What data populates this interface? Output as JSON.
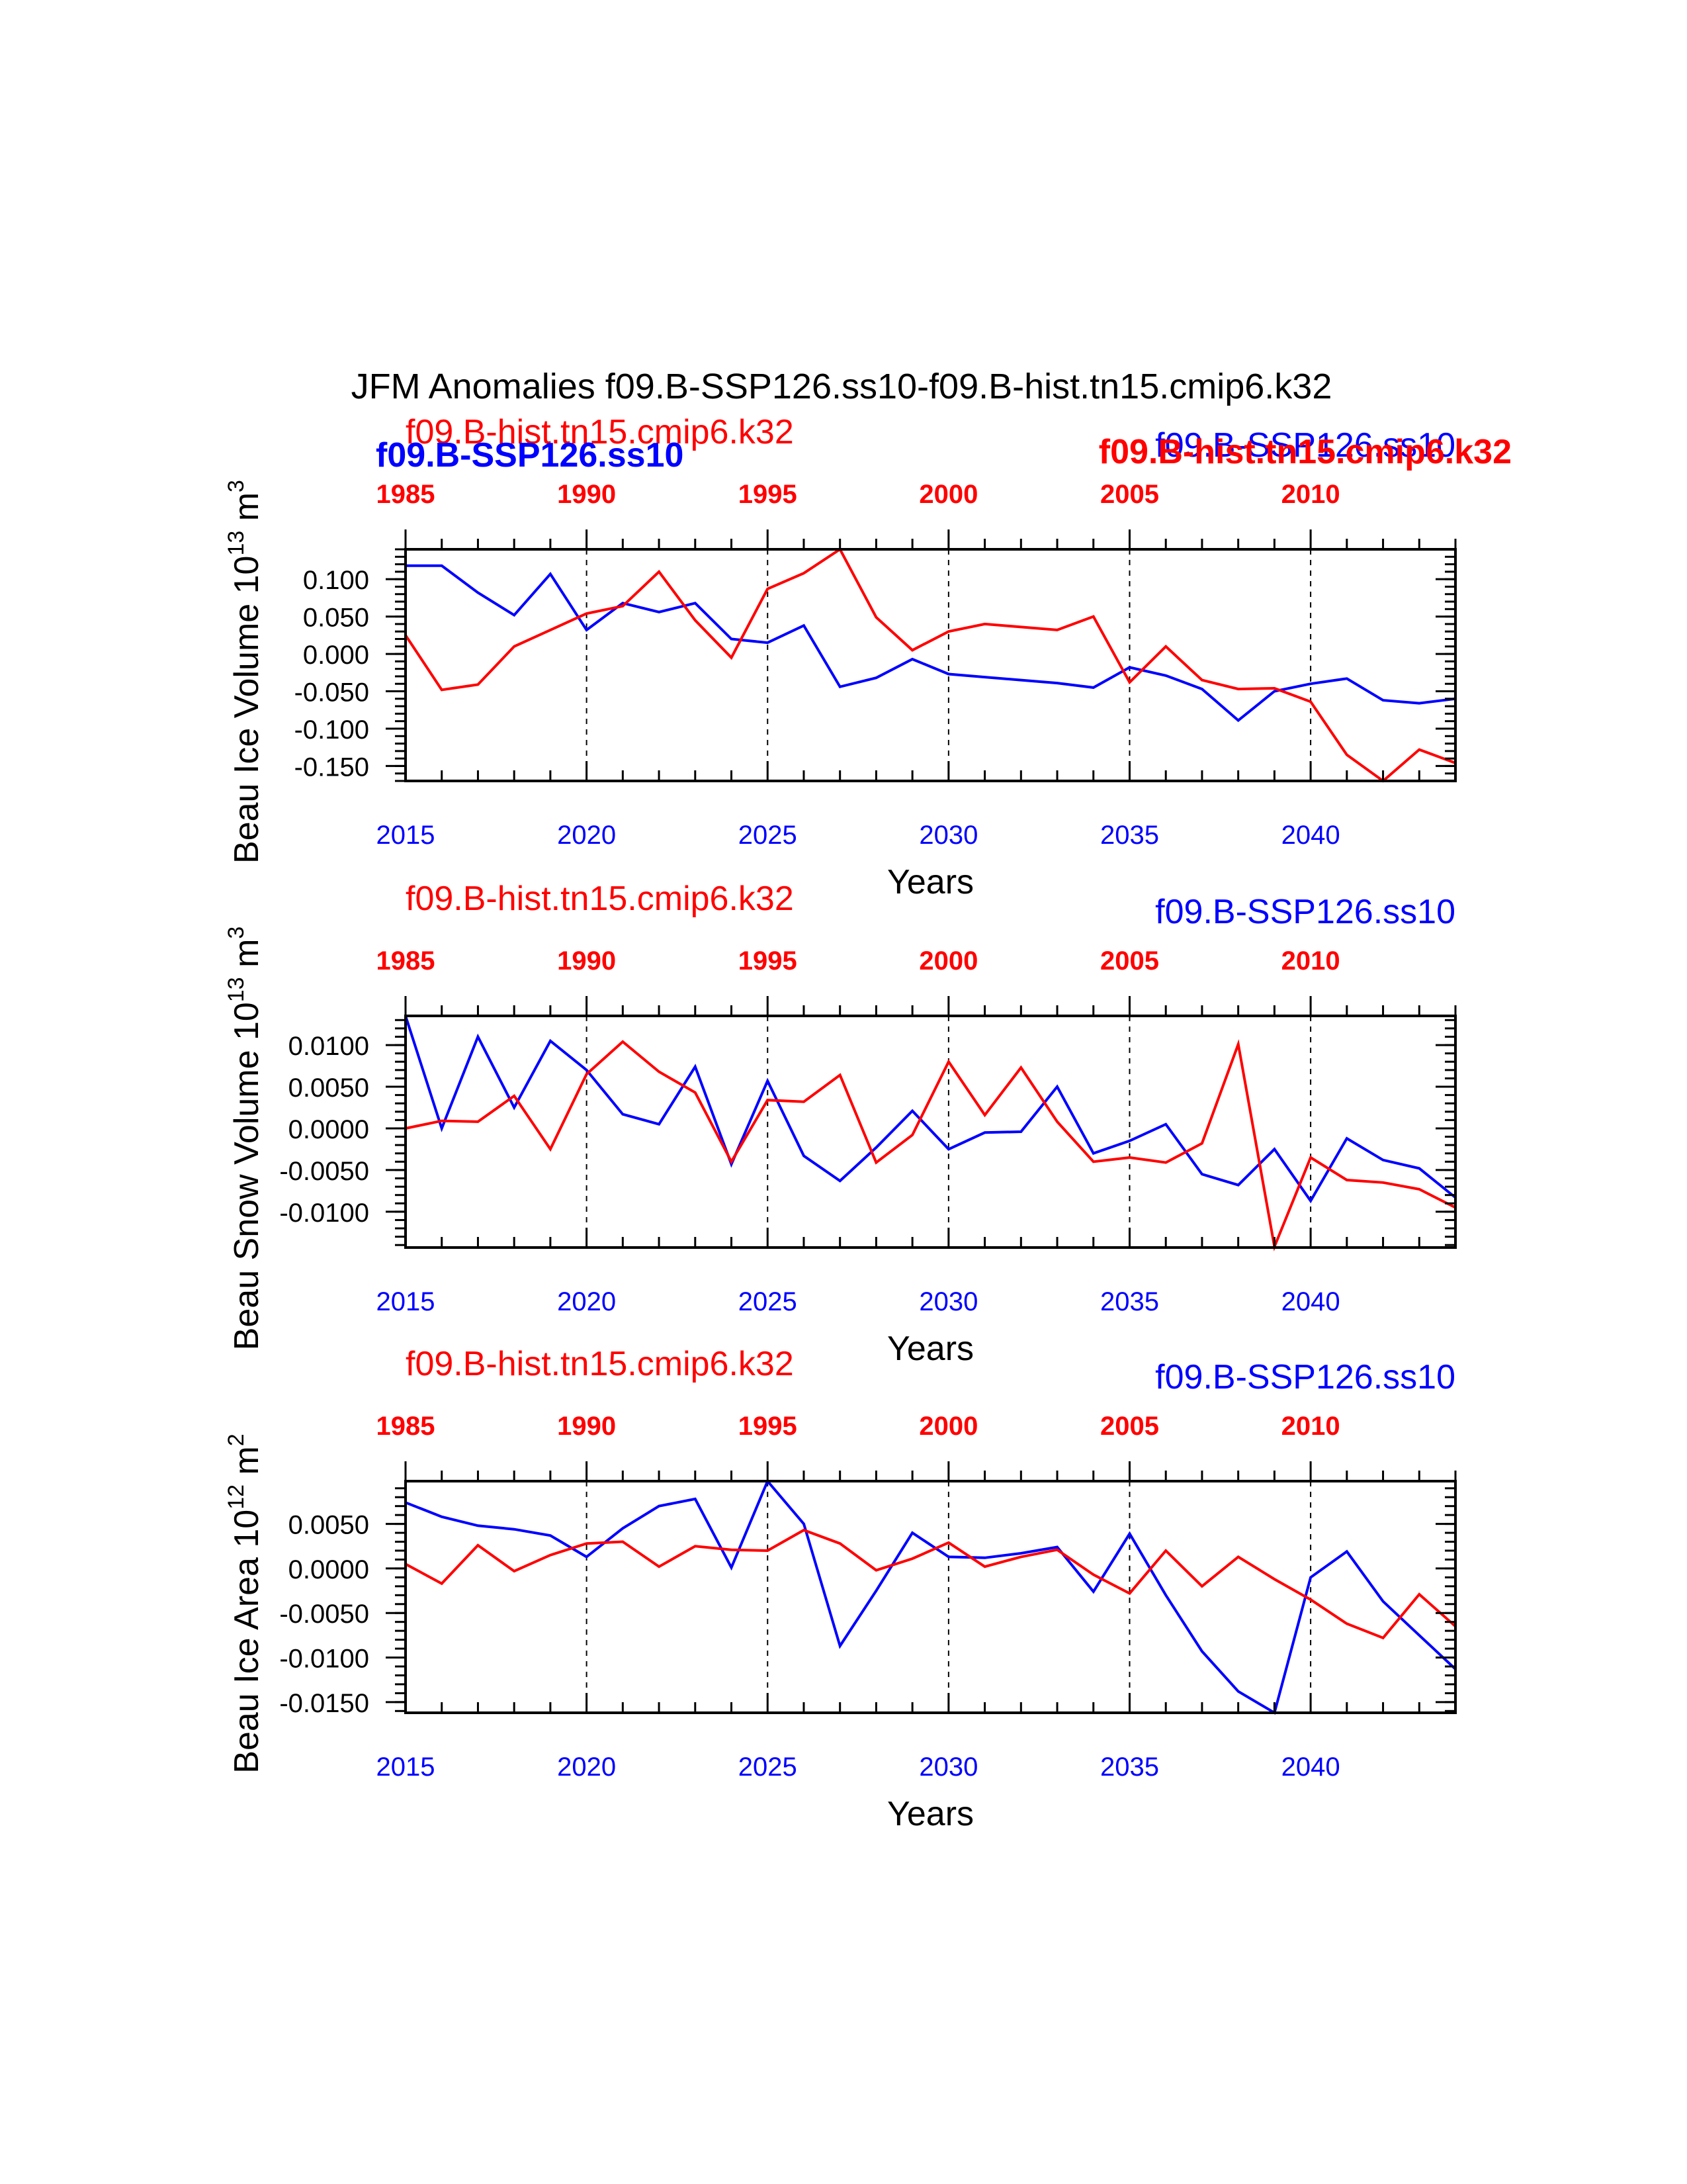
{
  "title": "JFM Anomalies f09.B-SSP126.ss10-f09.B-hist.tn15.cmip6.k32",
  "colors": {
    "ssp": "#0000ff",
    "hist": "#ff0000",
    "axis": "#000000"
  },
  "legend_labels": {
    "hist_left": "f09.B-hist.tn15.cmip6.k32",
    "ssp_left": "f09.B-SSP126.ss10",
    "ssp_right": "f09.B-SSP126.ss10",
    "hist_right": "f09.B-hist.tn15.cmip6.k32"
  },
  "chart_data": [
    {
      "type": "line",
      "ylabel_main": "Beau Ice Volume 10",
      "ylabel_exp": "13",
      "ylabel_unit": "m",
      "ylabel_unit_exp": "3",
      "xlabel": "Years",
      "x": [
        2015,
        2016,
        2017,
        2018,
        2019,
        2020,
        2021,
        2022,
        2023,
        2024,
        2025,
        2026,
        2027,
        2028,
        2029,
        2030,
        2031,
        2032,
        2033,
        2034,
        2035,
        2036,
        2037,
        2038,
        2039,
        2040,
        2041,
        2042,
        2043,
        2044
      ],
      "xlim": [
        2015,
        2044
      ],
      "ylim": [
        -0.17,
        0.14
      ],
      "yticks": [
        0.1,
        0.05,
        0.0,
        -0.05,
        -0.1,
        -0.15
      ],
      "ytick_labels": [
        "0.100",
        "0.050",
        "0.000",
        "-0.050",
        "-0.100",
        "-0.150"
      ],
      "yminor_step": 0.01,
      "bottom_ticks": [
        2015,
        2020,
        2025,
        2030,
        2035,
        2040
      ],
      "bottom_tick_labels": [
        "2015",
        "2020",
        "2025",
        "2030",
        "2035",
        "2040"
      ],
      "top_ticks": [
        2015,
        2020,
        2025,
        2030,
        2035,
        2040
      ],
      "top_tick_labels": [
        "1985",
        "1990",
        "1995",
        "2000",
        "2005",
        "2010"
      ],
      "legend_overlap": true,
      "series": [
        {
          "name": "f09.B-SSP126.ss10",
          "color": "#0000ff",
          "values": [
            0.118,
            0.118,
            0.082,
            0.052,
            0.107,
            0.032,
            0.068,
            0.056,
            0.068,
            0.02,
            0.015,
            0.038,
            -0.044,
            -0.032,
            -0.007,
            -0.027,
            -0.031,
            -0.035,
            -0.039,
            -0.045,
            -0.018,
            -0.029,
            -0.047,
            -0.089,
            -0.05,
            -0.04,
            -0.033,
            -0.062,
            -0.066,
            -0.06
          ]
        },
        {
          "name": "f09.B-hist.tn15.cmip6.k32",
          "color": "#ff0000",
          "values": [
            0.025,
            -0.048,
            -0.041,
            0.01,
            0.032,
            0.054,
            0.064,
            0.11,
            0.045,
            -0.005,
            0.087,
            0.108,
            0.14,
            0.049,
            0.005,
            0.03,
            0.04,
            0.036,
            0.032,
            0.05,
            -0.038,
            0.01,
            -0.035,
            -0.047,
            -0.046,
            -0.064,
            -0.135,
            -0.17,
            -0.128,
            -0.146
          ]
        }
      ]
    },
    {
      "type": "line",
      "ylabel_main": "Beau Snow Volume 10",
      "ylabel_exp": "13",
      "ylabel_unit": "m",
      "ylabel_unit_exp": "3",
      "xlabel": "Years",
      "x": [
        2015,
        2016,
        2017,
        2018,
        2019,
        2020,
        2021,
        2022,
        2023,
        2024,
        2025,
        2026,
        2027,
        2028,
        2029,
        2030,
        2031,
        2032,
        2033,
        2034,
        2035,
        2036,
        2037,
        2038,
        2039,
        2040,
        2041,
        2042,
        2043,
        2044
      ],
      "xlim": [
        2015,
        2044
      ],
      "ylim": [
        -0.0143,
        0.0135
      ],
      "yticks": [
        0.01,
        0.005,
        0.0,
        -0.005,
        -0.01
      ],
      "ytick_labels": [
        "0.0100",
        "0.0050",
        "0.0000",
        "-0.0050",
        "-0.0100"
      ],
      "yminor_step": 0.001,
      "bottom_ticks": [
        2015,
        2020,
        2025,
        2030,
        2035,
        2040
      ],
      "bottom_tick_labels": [
        "2015",
        "2020",
        "2025",
        "2030",
        "2035",
        "2040"
      ],
      "top_ticks": [
        2015,
        2020,
        2025,
        2030,
        2035,
        2040
      ],
      "top_tick_labels": [
        "1985",
        "1990",
        "1995",
        "2000",
        "2005",
        "2010"
      ],
      "legend_overlap": false,
      "series": [
        {
          "name": "f09.B-SSP126.ss10",
          "color": "#0000ff",
          "values": [
            0.0135,
            0.0,
            0.011,
            0.0025,
            0.0105,
            0.007,
            0.0017,
            0.0005,
            0.0074,
            -0.0043,
            0.0057,
            -0.0033,
            -0.0063,
            -0.0023,
            0.0021,
            -0.0025,
            -0.0005,
            -0.0004,
            0.005,
            -0.003,
            -0.0015,
            0.0005,
            -0.0055,
            -0.0068,
            -0.0025,
            -0.0087,
            -0.0012,
            -0.0038,
            -0.0048,
            -0.0083
          ]
        },
        {
          "name": "f09.B-hist.tn15.cmip6.k32",
          "color": "#ff0000",
          "values": [
            0.0,
            0.0009,
            0.0008,
            0.0039,
            -0.0025,
            0.0065,
            0.0104,
            0.0068,
            0.0043,
            -0.004,
            0.0034,
            0.0032,
            0.0064,
            -0.0041,
            -0.0008,
            0.008,
            0.0016,
            0.0073,
            0.0008,
            -0.004,
            -0.0035,
            -0.0041,
            -0.0018,
            0.0101,
            -0.0142,
            -0.0035,
            -0.0062,
            -0.0065,
            -0.0073,
            -0.0095
          ]
        }
      ]
    },
    {
      "type": "line",
      "ylabel_main": "Beau Ice Area 10",
      "ylabel_exp": "12",
      "ylabel_unit": "m",
      "ylabel_unit_exp": "2",
      "xlabel": "Years",
      "x": [
        2015,
        2016,
        2017,
        2018,
        2019,
        2020,
        2021,
        2022,
        2023,
        2024,
        2025,
        2026,
        2027,
        2028,
        2029,
        2030,
        2031,
        2032,
        2033,
        2034,
        2035,
        2036,
        2037,
        2038,
        2039,
        2040,
        2041,
        2042,
        2043,
        2044
      ],
      "xlim": [
        2015,
        2044
      ],
      "ylim": [
        -0.0162,
        0.0098
      ],
      "yticks": [
        0.005,
        0.0,
        -0.005,
        -0.01,
        -0.015
      ],
      "ytick_labels": [
        "0.0050",
        "0.0000",
        "-0.0050",
        "-0.0100",
        "-0.0150"
      ],
      "yminor_step": 0.001,
      "bottom_ticks": [
        2015,
        2020,
        2025,
        2030,
        2035,
        2040
      ],
      "bottom_tick_labels": [
        "2015",
        "2020",
        "2025",
        "2030",
        "2035",
        "2040"
      ],
      "top_ticks": [
        2015,
        2020,
        2025,
        2030,
        2035,
        2040
      ],
      "top_tick_labels": [
        "1985",
        "1990",
        "1995",
        "2000",
        "2005",
        "2010"
      ],
      "legend_overlap": false,
      "series": [
        {
          "name": "f09.B-SSP126.ss10",
          "color": "#0000ff",
          "values": [
            0.0074,
            0.0058,
            0.0048,
            0.0044,
            0.0037,
            0.0013,
            0.0045,
            0.007,
            0.0078,
            0.0001,
            0.0098,
            0.005,
            -0.0087,
            -0.0025,
            0.004,
            0.0013,
            0.0012,
            0.0017,
            0.0024,
            -0.0026,
            0.0039,
            -0.003,
            -0.0093,
            -0.0138,
            -0.0162,
            -0.001,
            0.0019,
            -0.0037,
            -0.0075,
            -0.0113
          ]
        },
        {
          "name": "f09.B-hist.tn15.cmip6.k32",
          "color": "#ff0000",
          "values": [
            0.0005,
            -0.0017,
            0.0026,
            -0.0003,
            0.0015,
            0.0028,
            0.003,
            0.0002,
            0.0025,
            0.0021,
            0.002,
            0.0043,
            0.0028,
            -0.0002,
            0.0011,
            0.0029,
            0.0002,
            0.0013,
            0.0021,
            -0.0007,
            -0.0028,
            0.002,
            -0.002,
            0.0013,
            -0.0012,
            -0.0035,
            -0.0062,
            -0.0078,
            -0.0029,
            -0.0065
          ]
        }
      ]
    }
  ]
}
